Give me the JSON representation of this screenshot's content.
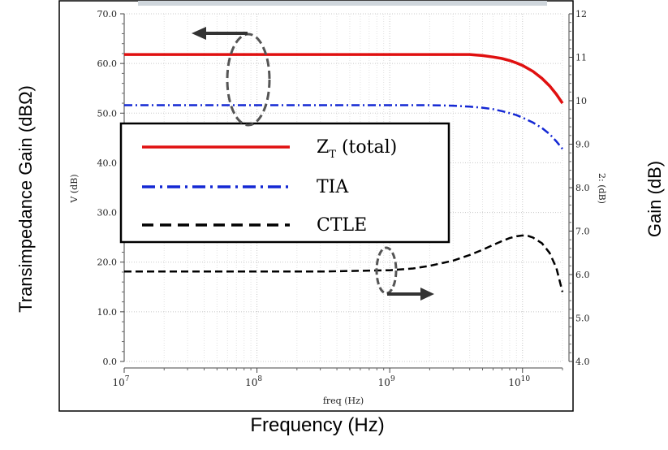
{
  "figure": {
    "outer_ylabel_left": "Transimpedance Gain (dBΩ)",
    "outer_ylabel_right": "Gain (dB)",
    "outer_xlabel": "Frequency (Hz)"
  },
  "chart_data": {
    "type": "line",
    "xscale": "log",
    "xlim": [
      10000000.0,
      20000000000.0
    ],
    "ylim_left": [
      0,
      70
    ],
    "ylim_right": [
      4,
      12
    ],
    "inner_xlabel": "freq (Hz)",
    "inner_ylabel_left": "V (dB)",
    "inner_ylabel_right": "2: (dB)",
    "x_ticks": [
      {
        "value": 10000000.0,
        "base": "10",
        "exp": "7"
      },
      {
        "value": 100000000.0,
        "base": "10",
        "exp": "8"
      },
      {
        "value": 1000000000.0,
        "base": "10",
        "exp": "9"
      },
      {
        "value": 10000000000.0,
        "base": "10",
        "exp": "10"
      }
    ],
    "y_left_ticks": [
      "0.0",
      "10.0",
      "20.0",
      "30.0",
      "40.0",
      "50.0",
      "60.0",
      "70.0"
    ],
    "y_right_ticks": [
      "4.0",
      "5.0",
      "6.0",
      "7.0",
      "8.0",
      "9.0",
      "10",
      "11",
      "12"
    ],
    "grid": true,
    "legend": {
      "placement": "middle-left",
      "entries": [
        {
          "series": "ZT",
          "label_main": "Z",
          "label_sub": "T",
          "label_rest": " (total)"
        },
        {
          "series": "TIA",
          "label_main": "TIA"
        },
        {
          "series": "CTLE",
          "label_main": "CTLE"
        }
      ]
    },
    "series": [
      {
        "key": "ZT",
        "axis": "left",
        "color": "#e01010",
        "dash": "solid",
        "x": [
          10000000.0,
          30000000.0,
          100000000.0,
          300000000.0,
          1000000000.0,
          2000000000.0,
          3000000000.0,
          4000000000.0,
          5000000000.0,
          6000000000.0,
          7000000000.0,
          8000000000.0,
          9000000000.0,
          10000000000.0,
          12000000000.0,
          14000000000.0,
          16000000000.0,
          18000000000.0,
          20000000000.0
        ],
        "y": [
          61.8,
          61.8,
          61.8,
          61.8,
          61.8,
          61.8,
          61.8,
          61.8,
          61.6,
          61.3,
          61.0,
          60.6,
          60.1,
          59.6,
          58.4,
          57.0,
          55.5,
          53.8,
          52.0
        ]
      },
      {
        "key": "TIA",
        "axis": "left",
        "color": "#1428d4",
        "dash": "dashdot",
        "x": [
          10000000.0,
          30000000.0,
          100000000.0,
          300000000.0,
          1000000000.0,
          2000000000.0,
          3000000000.0,
          4000000000.0,
          5000000000.0,
          6000000000.0,
          7000000000.0,
          8000000000.0,
          9000000000.0,
          10000000000.0,
          12000000000.0,
          14000000000.0,
          16000000000.0,
          18000000000.0,
          20000000000.0
        ],
        "y": [
          51.6,
          51.6,
          51.6,
          51.6,
          51.6,
          51.6,
          51.5,
          51.3,
          51.1,
          50.8,
          50.4,
          50.0,
          49.6,
          49.1,
          48.1,
          47.0,
          45.8,
          44.3,
          42.8
        ]
      },
      {
        "key": "CTLE",
        "axis": "right",
        "color": "#000000",
        "dash": "dashed",
        "x": [
          10000000.0,
          30000000.0,
          100000000.0,
          300000000.0,
          1000000000.0,
          1500000000.0,
          2000000000.0,
          3000000000.0,
          4000000000.0,
          5000000000.0,
          6000000000.0,
          7000000000.0,
          8000000000.0,
          9000000000.0,
          10000000000.0,
          11000000000.0,
          12000000000.0,
          14000000000.0,
          16000000000.0,
          18000000000.0,
          20000000000.0
        ],
        "y": [
          6.07,
          6.07,
          6.07,
          6.07,
          6.1,
          6.14,
          6.2,
          6.32,
          6.45,
          6.57,
          6.68,
          6.77,
          6.84,
          6.88,
          6.9,
          6.89,
          6.85,
          6.72,
          6.5,
          6.15,
          5.6
        ]
      }
    ],
    "annotations": [
      {
        "type": "ellipse-arrow",
        "target": "left-axis",
        "direction": "left"
      },
      {
        "type": "ellipse-arrow",
        "target": "right-axis",
        "direction": "right"
      }
    ]
  }
}
